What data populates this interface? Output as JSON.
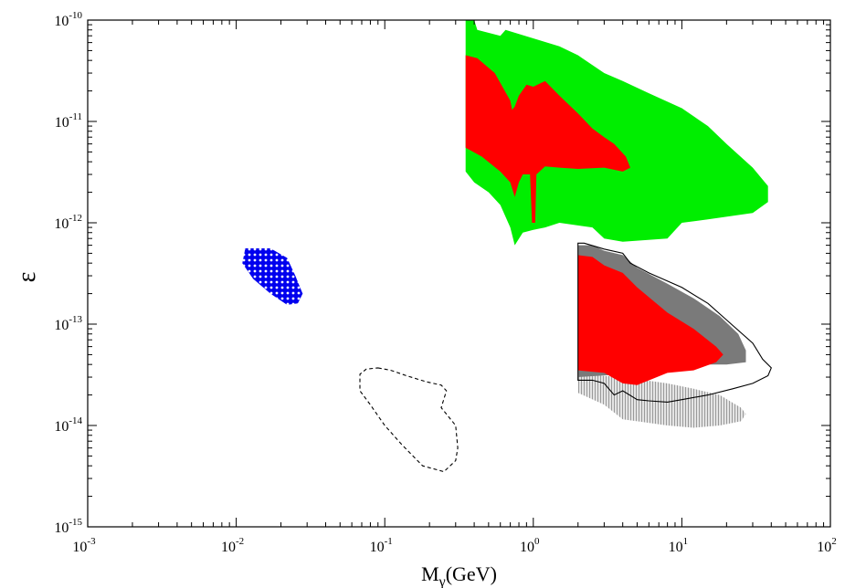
{
  "chart_data": {
    "type": "scatter",
    "title": "",
    "xlabel": "M",
    "xlabel_sub": "γ",
    "xlabel_unit": "(GeV)",
    "ylabel": "ε",
    "xscale": "log",
    "yscale": "log",
    "xlim": [
      0.001,
      100
    ],
    "ylim": [
      1e-15,
      1e-10
    ],
    "x_ticks": [
      {
        "base": "10",
        "exp": "-3"
      },
      {
        "base": "10",
        "exp": "-2"
      },
      {
        "base": "10",
        "exp": "-1"
      },
      {
        "base": "10",
        "exp": "0"
      },
      {
        "base": "10",
        "exp": "1"
      },
      {
        "base": "10",
        "exp": "2"
      }
    ],
    "y_ticks": [
      {
        "base": "10",
        "exp": "-15"
      },
      {
        "base": "10",
        "exp": "-14"
      },
      {
        "base": "10",
        "exp": "-13"
      },
      {
        "base": "10",
        "exp": "-12"
      },
      {
        "base": "10",
        "exp": "-11"
      },
      {
        "base": "10",
        "exp": "-10"
      }
    ],
    "grid": false,
    "regions": [
      {
        "id": "green-region",
        "style": "filled",
        "color": "#00ee00",
        "points": [
          [
            0.35,
            1e-10
          ],
          [
            0.4,
            1e-10
          ],
          [
            0.42,
            8e-11
          ],
          [
            0.6,
            7e-11
          ],
          [
            0.65,
            8e-11
          ],
          [
            1.5,
            5.5e-11
          ],
          [
            2,
            4.5e-11
          ],
          [
            3,
            3e-11
          ],
          [
            4,
            2.5e-11
          ],
          [
            6,
            1.9e-11
          ],
          [
            10,
            1.35e-11
          ],
          [
            15,
            9e-12
          ],
          [
            20,
            6e-12
          ],
          [
            30,
            3.5e-12
          ],
          [
            38,
            2.3e-12
          ],
          [
            38,
            1.6e-12
          ],
          [
            30,
            1.25e-12
          ],
          [
            15,
            1.08e-12
          ],
          [
            10,
            1e-12
          ],
          [
            8,
            7e-13
          ],
          [
            4,
            6.5e-13
          ],
          [
            3,
            7e-13
          ],
          [
            2.5,
            9e-13
          ],
          [
            1.5,
            1e-12
          ],
          [
            1.2,
            9e-13
          ],
          [
            1,
            8.5e-13
          ],
          [
            0.85,
            8e-13
          ],
          [
            0.75,
            6e-13
          ],
          [
            0.7,
            9e-13
          ],
          [
            0.6,
            1.5e-12
          ],
          [
            0.5,
            2e-12
          ],
          [
            0.4,
            2.5e-12
          ],
          [
            0.35,
            3.2e-12
          ]
        ]
      },
      {
        "id": "red-region-upper",
        "style": "filled",
        "color": "#ff0000",
        "points": [
          [
            0.35,
            4.5e-11
          ],
          [
            0.42,
            4.2e-11
          ],
          [
            0.55,
            3e-11
          ],
          [
            0.7,
            1.6e-11
          ],
          [
            0.72,
            1.3e-11
          ],
          [
            0.75,
            1.4e-11
          ],
          [
            0.8,
            1.8e-11
          ],
          [
            0.9,
            2.3e-11
          ],
          [
            1,
            2.2e-11
          ],
          [
            1.2,
            2.5e-11
          ],
          [
            1.5,
            1.8e-11
          ],
          [
            2,
            1.2e-11
          ],
          [
            2.5,
            8.5e-12
          ],
          [
            3,
            7e-12
          ],
          [
            3.5,
            6e-12
          ],
          [
            4.2,
            4.5e-12
          ],
          [
            4.5,
            3.5e-12
          ],
          [
            4,
            3.2e-12
          ],
          [
            3,
            3.5e-12
          ],
          [
            2,
            3.4e-12
          ],
          [
            1.5,
            3.5e-12
          ],
          [
            1.2,
            3.6e-12
          ],
          [
            1.05,
            3e-12
          ],
          [
            1.03,
            1e-12
          ],
          [
            0.98,
            1e-12
          ],
          [
            0.95,
            3e-12
          ],
          [
            0.85,
            3e-12
          ],
          [
            0.8,
            2.5e-12
          ],
          [
            0.75,
            1.8e-12
          ],
          [
            0.7,
            2.5e-12
          ],
          [
            0.6,
            3.2e-12
          ],
          [
            0.45,
            4.5e-12
          ],
          [
            0.35,
            5.5e-12
          ]
        ]
      },
      {
        "id": "blue-region",
        "style": "dotted",
        "color": "#0000ee",
        "points": [
          [
            0.0115,
            5.6e-13
          ],
          [
            0.017,
            5.6e-13
          ],
          [
            0.022,
            4.5e-13
          ],
          [
            0.025,
            3e-13
          ],
          [
            0.028,
            2e-13
          ],
          [
            0.026,
            1.6e-13
          ],
          [
            0.022,
            1.55e-13
          ],
          [
            0.017,
            2e-13
          ],
          [
            0.013,
            2.8e-13
          ],
          [
            0.011,
            4e-13
          ]
        ]
      },
      {
        "id": "light-gray-region",
        "style": "hatched",
        "color": "#bbbbbb",
        "points": [
          [
            2,
            3.2e-14
          ],
          [
            4,
            3e-14
          ],
          [
            8,
            2.6e-14
          ],
          [
            12,
            2.3e-14
          ],
          [
            18,
            2e-14
          ],
          [
            25,
            1.5e-14
          ],
          [
            27,
            1.3e-14
          ],
          [
            25,
            1.1e-14
          ],
          [
            18,
            1e-14
          ],
          [
            12,
            9.5e-15
          ],
          [
            8,
            1e-14
          ],
          [
            5,
            1.1e-14
          ],
          [
            4,
            1.15e-14
          ],
          [
            3,
            1.6e-14
          ],
          [
            2,
            2.1e-14
          ]
        ]
      },
      {
        "id": "dark-gray-region",
        "style": "filled",
        "color": "#7a7a7a",
        "points": [
          [
            2,
            6e-13
          ],
          [
            2.5,
            6e-13
          ],
          [
            3,
            5.3e-13
          ],
          [
            4,
            4.8e-13
          ],
          [
            5,
            3.6e-13
          ],
          [
            8,
            2.5e-13
          ],
          [
            12,
            1.8e-13
          ],
          [
            18,
            1.2e-13
          ],
          [
            24,
            8e-14
          ],
          [
            27,
            5.5e-14
          ],
          [
            27,
            4.2e-14
          ],
          [
            20,
            4e-14
          ],
          [
            15,
            4e-14
          ],
          [
            10,
            3.6e-14
          ],
          [
            7,
            3.4e-14
          ],
          [
            4,
            3.2e-14
          ],
          [
            2,
            3e-14
          ]
        ]
      },
      {
        "id": "red-region-lower",
        "style": "filled",
        "color": "#ff0000",
        "points": [
          [
            2,
            4.8e-13
          ],
          [
            2.5,
            4.6e-13
          ],
          [
            3,
            3.8e-13
          ],
          [
            4,
            3.2e-13
          ],
          [
            5,
            2.3e-13
          ],
          [
            8,
            1.3e-13
          ],
          [
            12,
            9e-14
          ],
          [
            17,
            6e-14
          ],
          [
            19,
            5e-14
          ],
          [
            17,
            4.2e-14
          ],
          [
            12,
            3.5e-14
          ],
          [
            8,
            3.3e-14
          ],
          [
            5,
            2.5e-14
          ],
          [
            4,
            2.6e-14
          ],
          [
            3,
            3.3e-14
          ],
          [
            2,
            3.5e-14
          ]
        ]
      }
    ],
    "contours": [
      {
        "id": "dashed-contour",
        "style": "dashed",
        "color": "#000000",
        "points": [
          [
            0.09,
            3.7e-14
          ],
          [
            0.11,
            3.5e-14
          ],
          [
            0.14,
            3.1e-14
          ],
          [
            0.19,
            2.7e-14
          ],
          [
            0.24,
            2.5e-14
          ],
          [
            0.26,
            2.2e-14
          ],
          [
            0.24,
            1.5e-14
          ],
          [
            0.3,
            1e-14
          ],
          [
            0.31,
            6e-15
          ],
          [
            0.3,
            4.5e-15
          ],
          [
            0.25,
            3.5e-15
          ],
          [
            0.18,
            4e-15
          ],
          [
            0.13,
            6.5e-15
          ],
          [
            0.1,
            1e-14
          ],
          [
            0.08,
            1.6e-14
          ],
          [
            0.068,
            2.2e-14
          ],
          [
            0.068,
            3.2e-14
          ],
          [
            0.075,
            3.6e-14
          ]
        ]
      },
      {
        "id": "solid-contour",
        "style": "solid",
        "color": "#000000",
        "points": [
          [
            2,
            6.3e-13
          ],
          [
            2.2,
            6.3e-13
          ],
          [
            3,
            5.5e-13
          ],
          [
            4,
            5e-13
          ],
          [
            4.5,
            4e-13
          ],
          [
            6,
            3.2e-13
          ],
          [
            10,
            2.3e-13
          ],
          [
            15,
            1.6e-13
          ],
          [
            20,
            1.1e-13
          ],
          [
            30,
            6.5e-14
          ],
          [
            35,
            4.5e-14
          ],
          [
            40,
            3.7e-14
          ],
          [
            38,
            3.1e-14
          ],
          [
            30,
            2.6e-14
          ],
          [
            22,
            2.3e-14
          ],
          [
            15,
            2e-14
          ],
          [
            10,
            1.8e-14
          ],
          [
            8,
            1.7e-14
          ],
          [
            6,
            1.75e-14
          ],
          [
            5,
            1.8e-14
          ],
          [
            4,
            2.2e-14
          ],
          [
            3.5,
            2e-14
          ],
          [
            3,
            2.6e-14
          ],
          [
            2.5,
            2.8e-14
          ],
          [
            2,
            2.8e-14
          ]
        ]
      }
    ]
  }
}
